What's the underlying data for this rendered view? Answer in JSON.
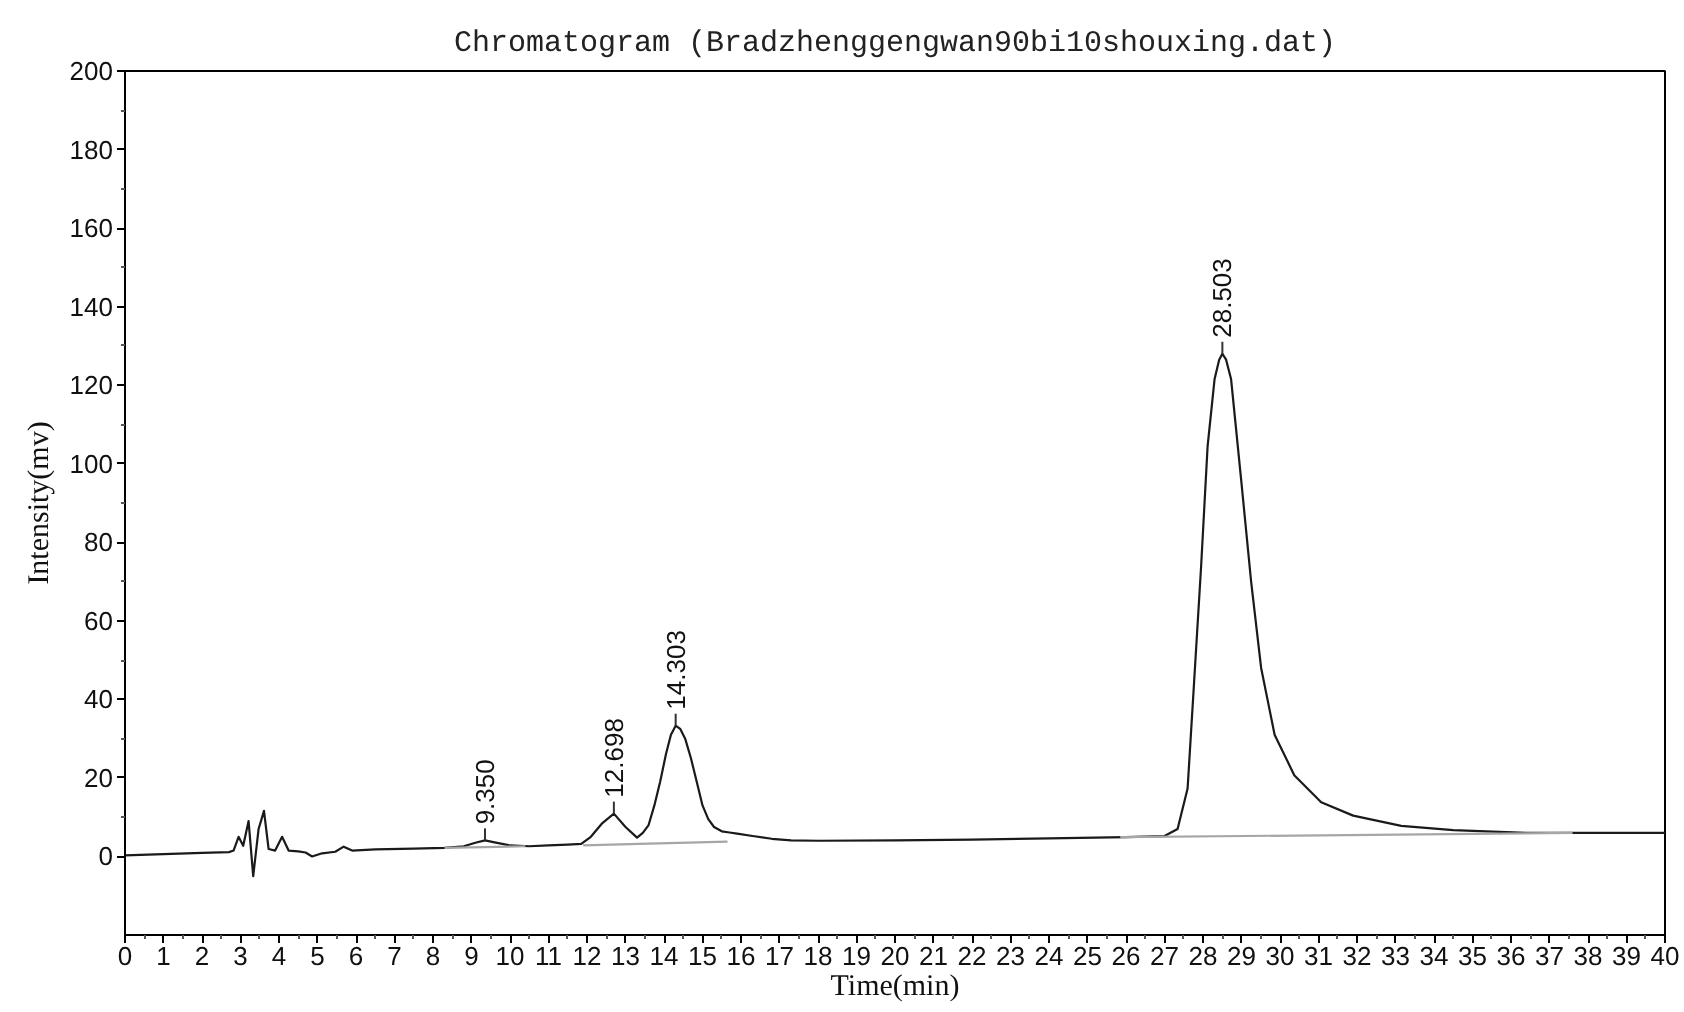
{
  "chart_data": {
    "type": "line",
    "title": "Chromatogram (Bradzhenggengwan90bi10shouxing.dat)",
    "xlabel": "Time(min)",
    "ylabel": "Intensity(mv)",
    "xlim": [
      0,
      40
    ],
    "ylim": [
      -20,
      200
    ],
    "xticks": [
      0,
      1,
      2,
      3,
      4,
      5,
      6,
      7,
      8,
      9,
      10,
      11,
      12,
      13,
      14,
      15,
      16,
      17,
      18,
      19,
      20,
      21,
      22,
      23,
      24,
      25,
      26,
      27,
      28,
      29,
      30,
      31,
      32,
      33,
      34,
      35,
      36,
      37,
      38,
      39,
      40
    ],
    "yticks": [
      0,
      20,
      40,
      60,
      80,
      100,
      120,
      140,
      160,
      180,
      200
    ],
    "grid": false,
    "series": [
      {
        "color": "#1a1a1a",
        "x": [
          0,
          1,
          2,
          2.7,
          2.82,
          2.95,
          3.07,
          3.21,
          3.33,
          3.47,
          3.61,
          3.73,
          3.9,
          4.08,
          4.25,
          4.5,
          4.69,
          4.86,
          5.12,
          5.46,
          5.68,
          5.9,
          6.5,
          7.5,
          8.3,
          8.8,
          9.1,
          9.35,
          9.6,
          10.0,
          10.5,
          11.0,
          11.5,
          11.85,
          12.1,
          12.4,
          12.698,
          13.0,
          13.3,
          13.45,
          13.6,
          13.75,
          13.9,
          14.05,
          14.18,
          14.303,
          14.42,
          14.55,
          14.7,
          14.85,
          15.0,
          15.15,
          15.3,
          15.5,
          15.7,
          15.9,
          16.3,
          16.8,
          17.3,
          18,
          20,
          22,
          24,
          26,
          27.0,
          27.34,
          27.6,
          27.77,
          27.95,
          28.12,
          28.3,
          28.42,
          28.503,
          28.6,
          28.73,
          28.99,
          29.25,
          29.51,
          29.86,
          30.37,
          31.07,
          31.9,
          33.15,
          34.5,
          36.4,
          38,
          40
        ],
        "values": [
          0.3,
          0.6,
          0.9,
          1.1,
          1.5,
          5,
          2.7,
          9,
          -5,
          7,
          11.6,
          1.9,
          1.5,
          5,
          1.5,
          1.3,
          1.0,
          0,
          0.8,
          1.2,
          2.5,
          1.5,
          1.8,
          2.0,
          2.2,
          2.6,
          3.5,
          4.1,
          3.6,
          2.8,
          2.6,
          2.8,
          3.0,
          3.2,
          5,
          8.5,
          10.9,
          7.5,
          4.8,
          6,
          8,
          13,
          19,
          26,
          31,
          33.3,
          32.5,
          30,
          25,
          19,
          13,
          9.5,
          7.5,
          6.4,
          6.1,
          5.8,
          5.2,
          4.5,
          4.1,
          4.0,
          4.1,
          4.3,
          4.6,
          4.9,
          5.2,
          7.0,
          17.3,
          44.6,
          73.7,
          104.5,
          121.5,
          126.5,
          128,
          126.5,
          121.5,
          96,
          70,
          48,
          31,
          20.7,
          13.8,
          10.4,
          7.8,
          6.7,
          6.0,
          6.0,
          6.0
        ]
      },
      {
        "color": "#a6a6a6",
        "x": [
          8.3,
          10.4
        ],
        "values": [
          2.2,
          2.6
        ]
      },
      {
        "color": "#a6a6a6",
        "x": [
          11.9,
          13.35,
          15.65
        ],
        "values": [
          2.8,
          3.2,
          3.8
        ]
      },
      {
        "color": "#a6a6a6",
        "x": [
          25.85,
          37.6
        ],
        "values": [
          4.9,
          6.0
        ]
      }
    ],
    "annotations": [
      {
        "text": "9.350",
        "x": 9.35,
        "y": 4.1
      },
      {
        "text": "12.698",
        "x": 12.698,
        "y": 10.9
      },
      {
        "text": "14.303",
        "x": 14.303,
        "y": 33.3
      },
      {
        "text": "28.503",
        "x": 28.503,
        "y": 128
      }
    ]
  }
}
